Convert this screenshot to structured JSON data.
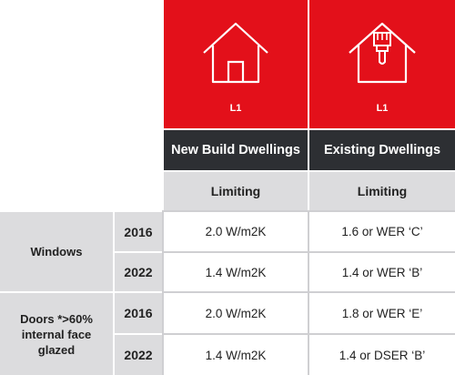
{
  "columns": [
    {
      "icon": "house-icon",
      "code": "L1",
      "title": "New Build Dwellings",
      "subheader": "Limiting"
    },
    {
      "icon": "house-paintbrush-icon",
      "code": "L1",
      "title": "Existing Dwellings",
      "subheader": "Limiting"
    }
  ],
  "rows": [
    {
      "group": "Windows",
      "years": [
        {
          "year": "2016",
          "values": [
            "2.0 W/m2K",
            "1.6 or WER ‘C’"
          ]
        },
        {
          "year": "2022",
          "values": [
            "1.4 W/m2K",
            "1.4 or WER ‘B’"
          ]
        }
      ]
    },
    {
      "group": "Doors *>60% internal face glazed",
      "years": [
        {
          "year": "2016",
          "values": [
            "2.0 W/m2K",
            "1.8 or WER ‘E’"
          ]
        },
        {
          "year": "2022",
          "values": [
            "1.4 W/m2K",
            "1.4 or DSER ‘B’"
          ]
        }
      ]
    }
  ],
  "colors": {
    "accent": "#e3101a",
    "header": "#2d2f33",
    "panel": "#dcdcde"
  }
}
